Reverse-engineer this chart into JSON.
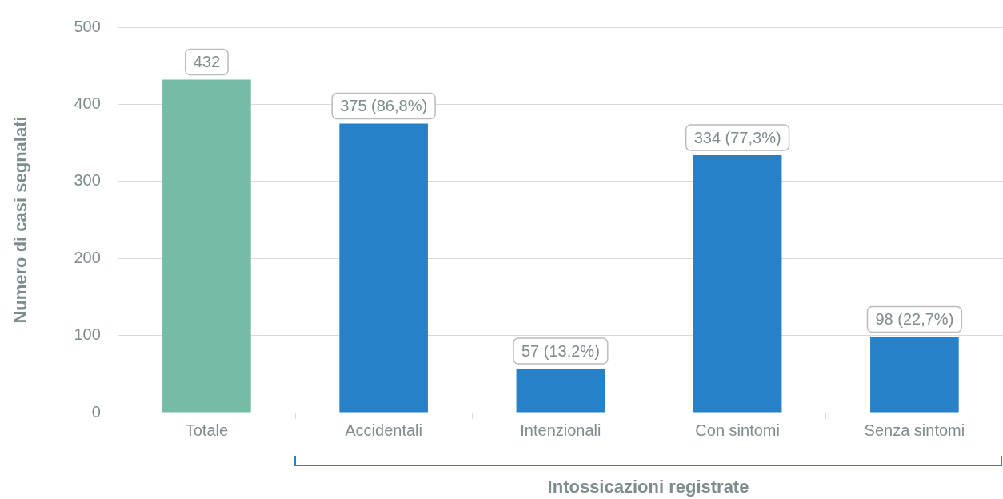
{
  "chart_data": {
    "type": "bar",
    "ylabel": "Numero di casi segnalati",
    "xlabel": "Intossicazioni registrate",
    "categories": [
      "Totale",
      "Accidentali",
      "Intenzionali",
      "Con sintomi",
      "Senza sintomi"
    ],
    "values": [
      432,
      375,
      57,
      334,
      98
    ],
    "colors": [
      "#76bba6",
      "#2681c8",
      "#2681c8",
      "#2681c8",
      "#2681c8"
    ],
    "value_labels": [
      "432",
      "375 (86,8%)",
      "57 (13,2%)",
      "334 (77,3%)",
      "98 (22,7%)"
    ],
    "ylim": [
      0,
      500
    ],
    "yticks": [
      0,
      100,
      200,
      300,
      400,
      500
    ],
    "grid": "y",
    "legend": false
  }
}
